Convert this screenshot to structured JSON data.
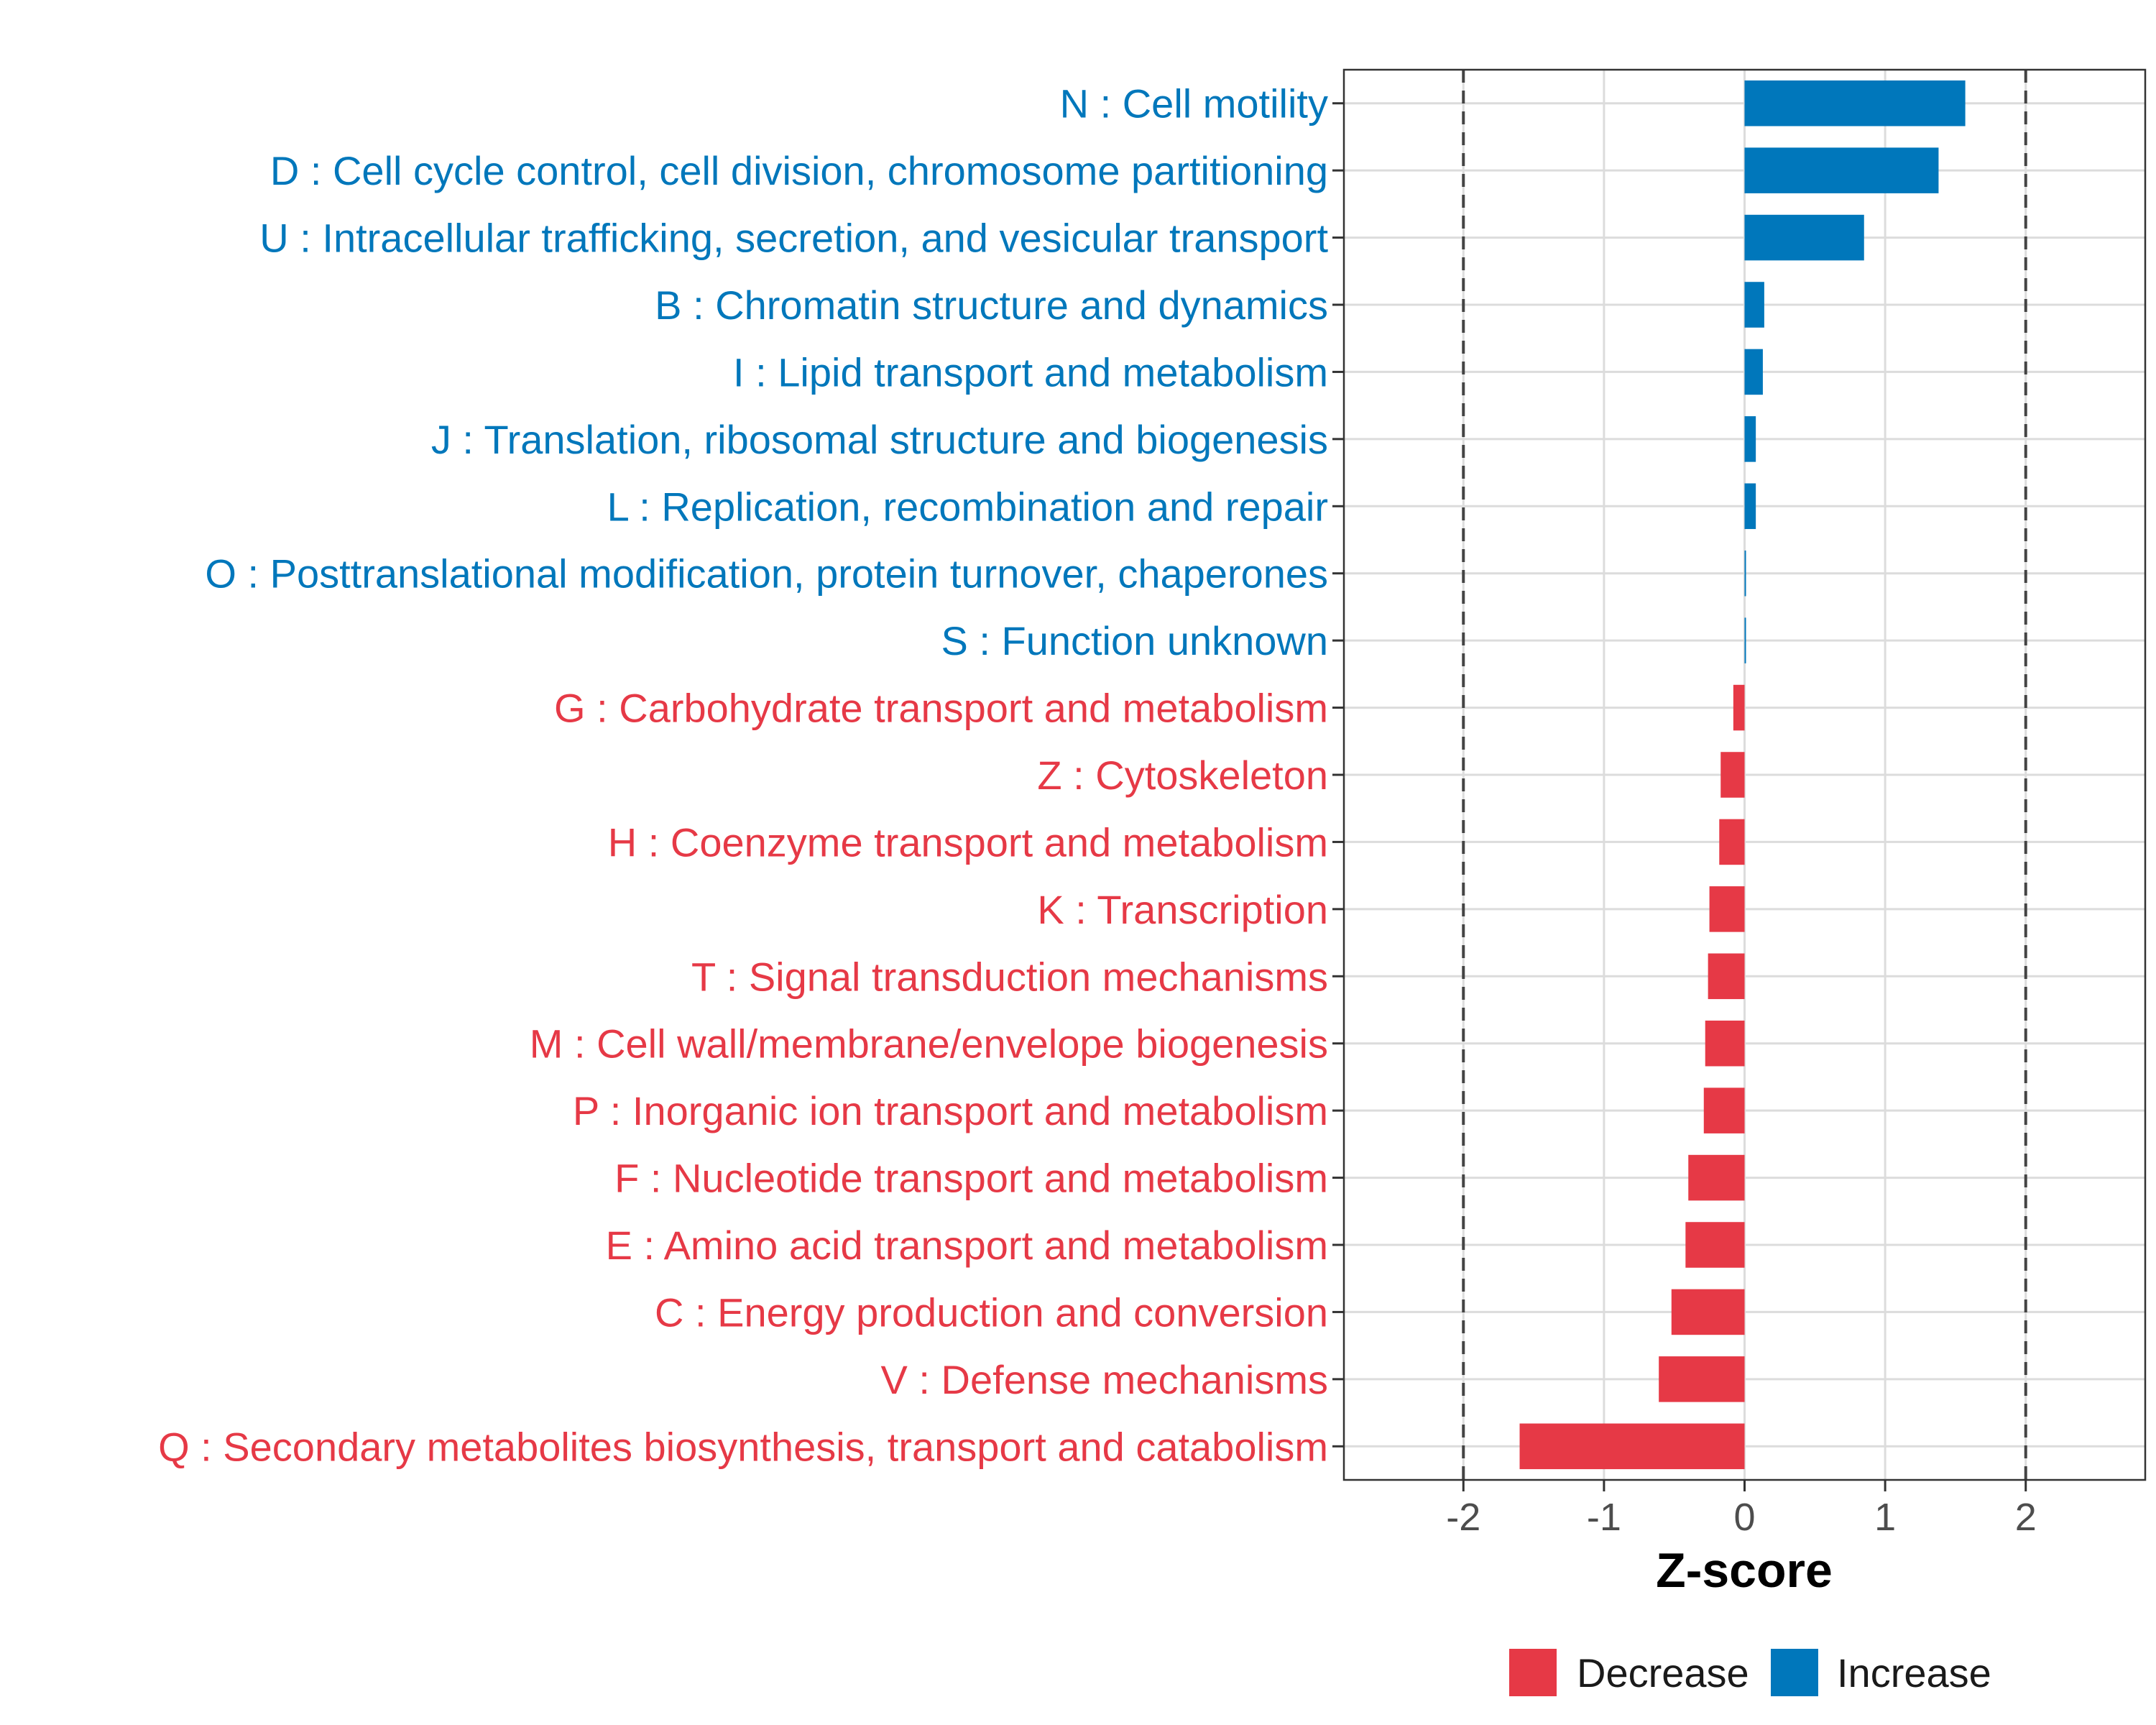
{
  "chart_data": {
    "type": "bar",
    "orientation": "horizontal",
    "xlabel": "Z-score",
    "ylabel": "",
    "xlim": [
      -2.85,
      2.85
    ],
    "xticks": [
      -2,
      -1,
      0,
      1,
      2
    ],
    "xtick_labels": [
      "-2",
      "-1",
      "0",
      "1",
      "2"
    ],
    "reference_lines": [
      -2,
      2
    ],
    "grid": true,
    "legend_position": "bottom",
    "colors": {
      "Decrease": "#e63946",
      "Increase": "#0077bb"
    },
    "categories": [
      "N : Cell motility",
      "D : Cell cycle control, cell division, chromosome partitioning",
      "U : Intracellular trafficking, secretion, and vesicular transport",
      "B : Chromatin structure and dynamics",
      "I : Lipid transport and metabolism",
      "J : Translation, ribosomal structure and biogenesis",
      "L : Replication, recombination and repair",
      "O : Posttranslational modification, protein turnover, chaperones",
      "S : Function unknown",
      "G : Carbohydrate transport and metabolism",
      "Z : Cytoskeleton",
      "H : Coenzyme transport and metabolism",
      "K : Transcription",
      "T : Signal transduction mechanisms",
      "M : Cell wall/membrane/envelope biogenesis",
      "P : Inorganic ion transport and metabolism",
      "F : Nucleotide transport and metabolism",
      "E : Amino acid transport and metabolism",
      "C : Energy production and conversion",
      "V : Defense mechanisms",
      "Q : Secondary metabolites biosynthesis, transport and catabolism"
    ],
    "values": [
      1.57,
      1.38,
      0.85,
      0.14,
      0.13,
      0.08,
      0.08,
      0.01,
      0.01,
      -0.08,
      -0.17,
      -0.18,
      -0.25,
      -0.26,
      -0.28,
      -0.29,
      -0.4,
      -0.42,
      -0.52,
      -0.61,
      -1.6
    ],
    "groups": [
      "Increase",
      "Increase",
      "Increase",
      "Increase",
      "Increase",
      "Increase",
      "Increase",
      "Increase",
      "Increase",
      "Decrease",
      "Decrease",
      "Decrease",
      "Decrease",
      "Decrease",
      "Decrease",
      "Decrease",
      "Decrease",
      "Decrease",
      "Decrease",
      "Decrease",
      "Decrease"
    ],
    "legend": [
      "Decrease",
      "Increase"
    ]
  }
}
